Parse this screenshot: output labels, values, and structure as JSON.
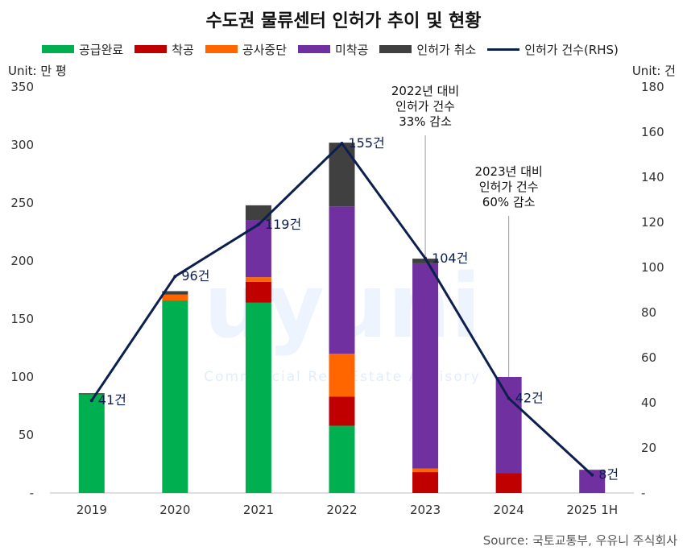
{
  "chart_data": {
    "type": "bar",
    "title": "수도권 물류센터 인허가 추이 및 현황",
    "ylabel_left": "Unit: 만 평",
    "ylabel_right": "Unit: 건",
    "categories": [
      "2019",
      "2020",
      "2021",
      "2022",
      "2023",
      "2024",
      "2025 1H"
    ],
    "ylim_left": [
      0,
      350
    ],
    "ylim_right": [
      0,
      180
    ],
    "yticks_left": [
      "-",
      "50",
      "100",
      "150",
      "200",
      "250",
      "300",
      "350"
    ],
    "yticks_right": [
      "-",
      "20",
      "40",
      "60",
      "80",
      "100",
      "120",
      "140",
      "160",
      "180"
    ],
    "series": [
      {
        "name": "공급완료",
        "color": "#00b050",
        "values": [
          85,
          166,
          164,
          58,
          0,
          0,
          0
        ]
      },
      {
        "name": "착공",
        "color": "#c00000",
        "values": [
          0,
          0,
          18,
          25,
          18,
          17,
          0
        ]
      },
      {
        "name": "공사중단",
        "color": "#ff6600",
        "values": [
          0,
          5,
          4,
          37,
          3,
          0,
          0
        ]
      },
      {
        "name": "미착공",
        "color": "#7030a0",
        "values": [
          0,
          0,
          49,
          127,
          177,
          83,
          20
        ]
      },
      {
        "name": "인허가 취소",
        "color": "#404040",
        "values": [
          1,
          3,
          13,
          55,
          4,
          0,
          0
        ]
      }
    ],
    "line": {
      "name": "인허가 건수(RHS)",
      "color": "#0d1f4f",
      "values": [
        41,
        96,
        119,
        155,
        104,
        42,
        8
      ],
      "labels": [
        "41건",
        "96건",
        "119건",
        "155건",
        "104건",
        "42건",
        "8건"
      ]
    },
    "annotations": [
      {
        "category": "2023",
        "lines": [
          "2022년 대비",
          "인허가 건수",
          "33% 감소"
        ]
      },
      {
        "category": "2024",
        "lines": [
          "2023년 대비",
          "인허가 건수",
          "60% 감소"
        ]
      }
    ],
    "source": "Source: 국토교통부, 우유니 주식회사",
    "watermark": "uyuni",
    "watermark_sub": "Commercial Real Estate Advisory"
  }
}
